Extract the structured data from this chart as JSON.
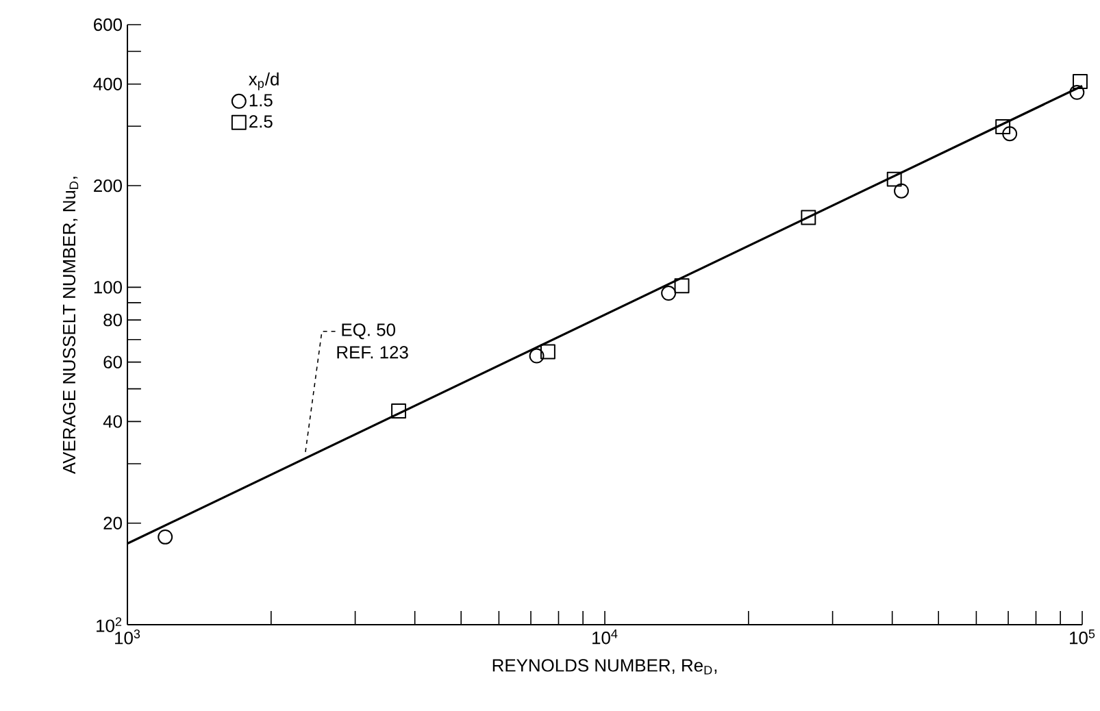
{
  "chart_data": {
    "type": "scatter",
    "xlabel": "REYNOLDS NUMBER, Re$_{D}$,",
    "ylabel": "AVERAGE NUSSELT NUMBER, Nu$_{D}$,",
    "legend_title": "x$_{p}$/d",
    "log": "xy",
    "legend": "top left",
    "xlim": [
      1000,
      100000
    ],
    "ylim": [
      10,
      600
    ],
    "xticks": [
      {
        "value": 1000,
        "label": "10$^{3}$"
      },
      {
        "value": 2000,
        "label": null
      },
      {
        "value": 3000,
        "label": null
      },
      {
        "value": 4000,
        "label": null
      },
      {
        "value": 5000,
        "label": null
      },
      {
        "value": 6000,
        "label": null
      },
      {
        "value": 7000,
        "label": null
      },
      {
        "value": 8000,
        "label": null
      },
      {
        "value": 9000,
        "label": null
      },
      {
        "value": 10000,
        "label": "10$^{4}$"
      },
      {
        "value": 20000,
        "label": null
      },
      {
        "value": 30000,
        "label": null
      },
      {
        "value": 40000,
        "label": null
      },
      {
        "value": 50000,
        "label": null
      },
      {
        "value": 60000,
        "label": null
      },
      {
        "value": 70000,
        "label": null
      },
      {
        "value": 80000,
        "label": null
      },
      {
        "value": 90000,
        "label": null
      },
      {
        "value": 100000,
        "label": "10$^{5}$"
      }
    ],
    "yticks": [
      {
        "value": 10,
        "label": null
      },
      20,
      {
        "value": 30,
        "label": null
      },
      40,
      {
        "value": 50,
        "label": null
      },
      60,
      {
        "value": 70,
        "label": null
      },
      80,
      {
        "value": 90,
        "label": null
      },
      100,
      200,
      {
        "value": 300,
        "label": null
      },
      400,
      {
        "value": 500,
        "label": null
      },
      600
    ],
    "series": [
      {
        "name": "1.5",
        "color": "#000000",
        "marker": "circle",
        "x": [
          1200,
          7200,
          13600,
          41800,
          70500,
          97500
        ],
        "values": [
          18.2,
          62.6,
          96,
          193,
          285,
          378
        ]
      },
      {
        "name": "2.5",
        "color": "#000000",
        "marker": "square",
        "x": [
          3700,
          7600,
          14500,
          26700,
          40400,
          68200,
          99000
        ],
        "values": [
          43,
          64.4,
          101,
          161,
          209,
          299,
          407
        ]
      },
      {
        "type": "line",
        "color": "#000000",
        "marker": "none",
        "line_style": "solid",
        "x": [
          1000,
          100000
        ],
        "values": [
          17.4,
          395
        ]
      }
    ],
    "annotations": [
      {
        "text": "EQ. 50",
        "x": 2360,
        "y": 32.5
      },
      "REF. 123",
      "10$^{2}$"
    ]
  }
}
